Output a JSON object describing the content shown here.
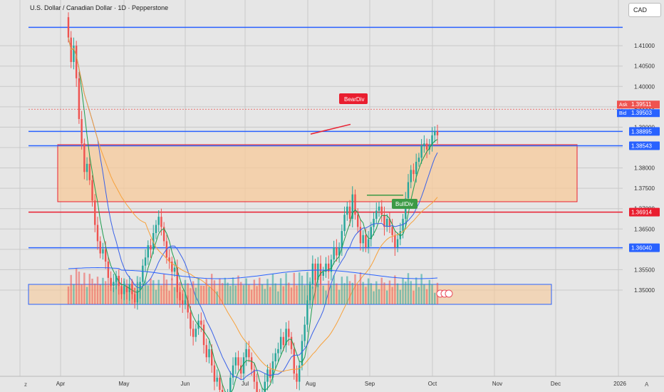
{
  "header": {
    "title": "U.S. Dollar / Canadian Dollar · 1D · Pepperstone",
    "currency_button": "CAD"
  },
  "footer": {
    "left_mark": "z",
    "right_mark": "A"
  },
  "colors": {
    "up": "#26a69a",
    "down": "#ef5350",
    "blue_line": "#2962ff",
    "red_line": "#e91e2f",
    "zone_fill": "#f7c99a",
    "ma_fast": "#1e9c4e",
    "ma_mid": "#3a62e8",
    "ma_slow": "#f7a13b",
    "bg": "#e6e6e6"
  },
  "chart_data": {
    "type": "candlestick",
    "ylim": [
      1.3465,
      1.4165
    ],
    "y_ticks": [
      "1.41000",
      "1.40500",
      "1.40000",
      "1.39500",
      "1.39000",
      "1.38500",
      "1.38000",
      "1.37500",
      "1.37000",
      "1.36500",
      "1.36000",
      "1.35500",
      "1.35000"
    ],
    "x_months": [
      "Apr",
      "May",
      "Jun",
      "Jul",
      "Aug",
      "Sep",
      "Oct",
      "Nov",
      "Dec",
      "2026"
    ],
    "price_labels": {
      "ask": {
        "label": "Ask",
        "value": "1.39511"
      },
      "bid": {
        "label": "Bid",
        "value": "1.39503"
      }
    },
    "horizontal_levels": [
      {
        "value": 1.4145,
        "color": "blue",
        "text": ""
      },
      {
        "value": 1.38895,
        "color": "blue",
        "text": "1.38895"
      },
      {
        "value": 1.38543,
        "color": "blue",
        "text": "1.38543"
      },
      {
        "value": 1.36914,
        "color": "red",
        "text": "1.36914"
      },
      {
        "value": 1.3604,
        "color": "blue",
        "text": "1.36040"
      }
    ],
    "zone": {
      "from": 1.3717,
      "to": 1.3857
    },
    "annotations": [
      {
        "text": "BearDiv",
        "color": "#e91e2f"
      },
      {
        "text": "BullDiv",
        "color": "#3c9a45"
      }
    ],
    "start": {
      "date": "2025-04-01",
      "value": 1.417
    },
    "daily_changes": [
      -0.005,
      -0.006,
      0.004,
      -0.008,
      -0.01,
      -0.006,
      -0.007,
      0.002,
      -0.004,
      -0.005,
      -0.006,
      -0.004,
      -0.003,
      0.001,
      -0.003,
      -0.004,
      -0.002,
      0.001,
      0.0015,
      -0.0025,
      -0.002,
      0.002,
      -0.0015,
      0.002,
      -0.0025,
      -0.002,
      0.003,
      0.002,
      0.004,
      0.002,
      0.003,
      -0.001,
      0.004,
      0.002,
      0.002,
      -0.0025,
      -0.0035,
      -0.004,
      -0.001,
      -0.0025,
      0.001,
      -0.006,
      -0.002,
      -0.001,
      0.001,
      -0.003,
      -0.004,
      -0.002,
      0.002,
      0.002,
      -0.001,
      -0.005,
      -0.003,
      0.002,
      -0.004,
      -0.004,
      0.001,
      -0.003,
      -0.004,
      0.001,
      0.002,
      0.004,
      0.003,
      0.002,
      -0.002,
      -0.002,
      0.004,
      0.002,
      -0.002,
      -0.003,
      -0.003,
      -0.003,
      -0.002,
      0.002,
      0.003,
      0.003,
      -0.002,
      0.004,
      0.002,
      0.001,
      0.003,
      -0.002,
      0.004,
      -0.002,
      -0.003,
      -0.006,
      -0.002,
      0.004,
      0.006,
      0.004,
      0.006,
      0.004,
      0.005,
      -0.004,
      0.004,
      -0.003,
      0.001,
      0.002,
      -0.002,
      0.003,
      0.003,
      -0.002,
      0.002,
      0.004,
      0.004,
      0.002,
      -0.003,
      0.006,
      -0.005,
      -0.003,
      -0.004,
      0.002,
      -0.003,
      0.002,
      0.003,
      0.002,
      0.002,
      0.001,
      -0.002,
      -0.003,
      0.002,
      -0.002,
      -0.002,
      -0.003,
      0.002,
      0.002,
      0.003,
      0.005,
      0.004,
      0.003,
      -0.001,
      0.003,
      0.001,
      0.003,
      0.0005,
      -0.0015,
      0.001,
      0.0025,
      0.001,
      -0.001
    ]
  }
}
